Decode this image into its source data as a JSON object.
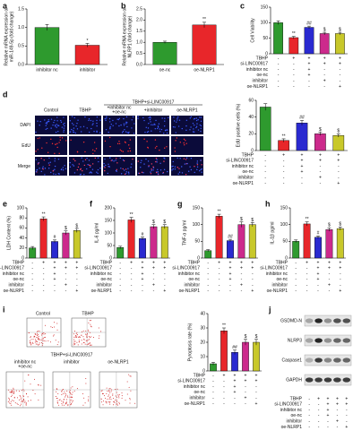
{
  "conditions": {
    "names": [
      "TBHP",
      "si-LINC00917",
      "inhibitor nc",
      "oe-nc",
      "inhibitor",
      "oe-NLRP1"
    ],
    "marks": [
      [
        "-",
        "+",
        "+",
        "+",
        "+"
      ],
      [
        "-",
        "-",
        "+",
        "+",
        "+"
      ],
      [
        "-",
        "-",
        "+",
        "-",
        "-"
      ],
      [
        "-",
        "-",
        "+",
        "-",
        "-"
      ],
      [
        "-",
        "-",
        "-",
        "+",
        "-"
      ],
      [
        "-",
        "-",
        "-",
        "-",
        "+"
      ]
    ]
  },
  "chart_data": [
    {
      "type": "bar",
      "panel": "a",
      "ylabel": [
        "Relative mRNA expression of",
        "miR-149-5p (fold change)"
      ],
      "categories": [
        "inhibitor nc",
        "inhibitor"
      ],
      "values": [
        1.0,
        0.52
      ],
      "errors": [
        0.08,
        0.05
      ],
      "colors": [
        "#2e9a2e",
        "#e8262a"
      ],
      "annotations": [
        null,
        "*"
      ],
      "ylim": [
        0,
        1.5
      ],
      "yticks": [
        {
          "value": 0,
          "label": "0.0"
        },
        0.5,
        {
          "value": 1,
          "label": "1.0"
        },
        1.5
      ]
    },
    {
      "type": "bar",
      "panel": "b",
      "ylabel": [
        "Relative mRNA expression of",
        "NLRP1 (fold change)"
      ],
      "categories": [
        "oe-nc",
        "oe-NLRP1"
      ],
      "values": [
        1.0,
        1.78
      ],
      "errors": [
        0.05,
        0.12
      ],
      "colors": [
        "#2e9a2e",
        "#e8262a"
      ],
      "annotations": [
        null,
        "**"
      ],
      "ylim": [
        0,
        2.5
      ],
      "yticks": [
        {
          "value": 0,
          "label": "0.0"
        },
        0.5,
        {
          "value": 1,
          "label": "1.0"
        },
        1.5,
        {
          "value": 2,
          "label": "2.0"
        },
        2.5
      ]
    },
    {
      "type": "bar",
      "panel": "c",
      "ylabel": [
        "Cell Viability"
      ],
      "values": [
        100,
        52,
        85,
        65,
        65
      ],
      "errors": [
        6,
        4,
        4,
        4,
        4
      ],
      "colors": [
        "#2e9a2e",
        "#e8262a",
        "#2a2ad0",
        "#cc2a8c",
        "#c8c82a"
      ],
      "annotations": [
        null,
        "**",
        "##",
        "$",
        "$"
      ],
      "ylim": [
        0,
        150
      ],
      "yticks": [
        0,
        50,
        100,
        150
      ]
    },
    {
      "type": "bar",
      "panel": "d",
      "ylabel": [
        "EdU positive cells (%)"
      ],
      "values": [
        52,
        12,
        33,
        20,
        18
      ],
      "errors": [
        4,
        2,
        3,
        2,
        2
      ],
      "colors": [
        "#2e9a2e",
        "#e8262a",
        "#2a2ad0",
        "#cc2a8c",
        "#c8c82a"
      ],
      "annotations": [
        null,
        "**",
        "##",
        "$",
        "$"
      ],
      "ylim": [
        0,
        60
      ],
      "yticks": [
        0,
        20,
        40,
        60
      ]
    },
    {
      "type": "bar",
      "panel": "e",
      "ylabel": [
        "LDH Content (%)"
      ],
      "values": [
        20,
        78,
        33,
        50,
        55
      ],
      "errors": [
        3,
        4,
        3,
        4,
        4
      ],
      "colors": [
        "#2e9a2e",
        "#e8262a",
        "#2a2ad0",
        "#cc2a8c",
        "#c8c82a"
      ],
      "annotations": [
        null,
        "**",
        "#",
        "$",
        "$"
      ],
      "ylim": [
        0,
        100
      ],
      "yticks": [
        0,
        20,
        40,
        60,
        80,
        100
      ]
    },
    {
      "type": "bar",
      "panel": "f",
      "ylabel": [
        "IL-6 pg/ml"
      ],
      "values": [
        42,
        152,
        78,
        125,
        125
      ],
      "errors": [
        5,
        10,
        6,
        8,
        8
      ],
      "colors": [
        "#2e9a2e",
        "#e8262a",
        "#2a2ad0",
        "#cc2a8c",
        "#c8c82a"
      ],
      "annotations": [
        null,
        "**",
        "#",
        "$",
        "$"
      ],
      "ylim": [
        0,
        200
      ],
      "yticks": [
        0,
        50,
        100,
        150,
        200
      ]
    },
    {
      "type": "bar",
      "panel": "g",
      "ylabel": [
        "TNF-α pg/ml"
      ],
      "values": [
        22,
        125,
        52,
        100,
        100
      ],
      "errors": [
        3,
        6,
        4,
        8,
        6
      ],
      "colors": [
        "#2e9a2e",
        "#e8262a",
        "#2a2ad0",
        "#cc2a8c",
        "#c8c82a"
      ],
      "annotations": [
        null,
        "**",
        "##",
        "$",
        "$"
      ],
      "ylim": [
        0,
        150
      ],
      "yticks": [
        0,
        50,
        100,
        150
      ]
    },
    {
      "type": "bar",
      "panel": "h",
      "ylabel": [
        "IL-1β pg/ml"
      ],
      "values": [
        50,
        102,
        62,
        85,
        88
      ],
      "errors": [
        4,
        6,
        4,
        5,
        5
      ],
      "colors": [
        "#2e9a2e",
        "#e8262a",
        "#2a2ad0",
        "#cc2a8c",
        "#c8c82a"
      ],
      "annotations": [
        null,
        "**",
        "#",
        "$",
        "$"
      ],
      "ylim": [
        0,
        150
      ],
      "yticks": [
        0,
        50,
        100,
        150
      ]
    },
    {
      "type": "bar",
      "panel": "i",
      "ylabel": [
        "Pyroptosis rate (%)"
      ],
      "values": [
        5,
        28,
        13,
        20,
        20
      ],
      "errors": [
        1,
        2,
        1.5,
        2,
        2
      ],
      "colors": [
        "#2e9a2e",
        "#e8262a",
        "#2a2ad0",
        "#cc2a8c",
        "#c8c82a"
      ],
      "annotations": [
        null,
        "**",
        "##",
        "$",
        "$"
      ],
      "ylim": [
        0,
        40
      ],
      "yticks": [
        0,
        10,
        20,
        30,
        40
      ]
    }
  ],
  "figure_images": {
    "d": {
      "columns": [
        [
          "Control"
        ],
        [
          "TBHP"
        ],
        [
          "+inhibitor nc",
          "+oe-nc"
        ],
        [
          "+inhibitor"
        ],
        [
          "oe-NLRP1"
        ]
      ],
      "group_header": "TBHP+si-LINC00917",
      "rows": [
        "DAPI",
        "EdU",
        "Merge"
      ]
    },
    "i": {
      "top": [
        "Control",
        "TBHP"
      ],
      "group_header": "TBHP+si-LINC00917",
      "bottom": [
        [
          "inhibitor nc",
          "+oe-nc"
        ],
        [
          "inhibitor"
        ],
        [
          "oe-NLRP1"
        ]
      ]
    },
    "j": {
      "panel": "j",
      "bands": [
        "GSDMD-N",
        "NLRP3",
        "Caspase1",
        "GAPDH"
      ]
    }
  }
}
